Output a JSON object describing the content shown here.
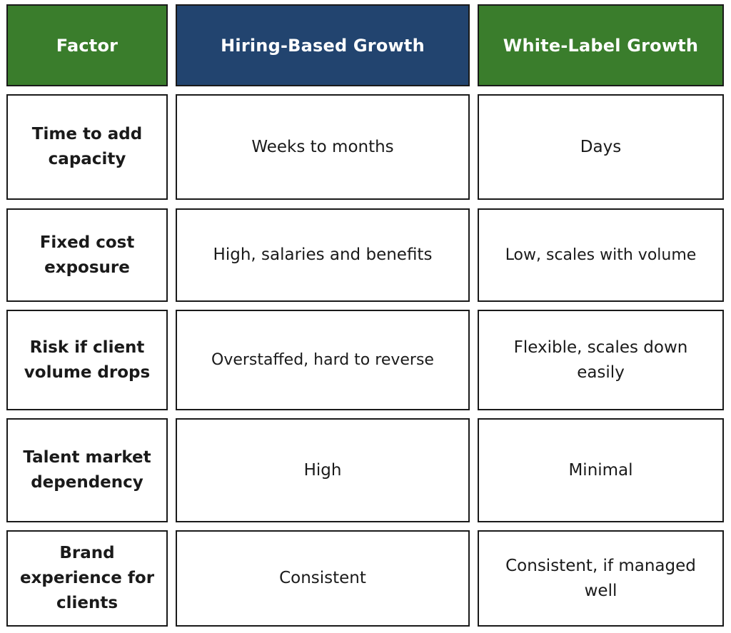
{
  "table": {
    "headers": [
      "Factor",
      "Hiring-Based Growth",
      "White-Label Growth"
    ],
    "rows": [
      {
        "factor": "Time to add capacity",
        "hiring": "Weeks to months",
        "white_label": "Days"
      },
      {
        "factor": "Fixed cost exposure",
        "hiring": "High, salaries and benefits",
        "white_label": "Low, scales with volume"
      },
      {
        "factor": "Risk if client volume drops",
        "hiring": "Overstaffed, hard to reverse",
        "white_label": "Flexible, scales down easily"
      },
      {
        "factor": "Talent market dependency",
        "hiring": "High",
        "white_label": "Minimal"
      },
      {
        "factor": "Brand experience for clients",
        "hiring": "Consistent",
        "white_label": "Consistent, if managed well"
      }
    ]
  },
  "colors": {
    "header_green": "#3a7d2c",
    "header_blue": "#22446f",
    "border": "#1a1a1a"
  }
}
